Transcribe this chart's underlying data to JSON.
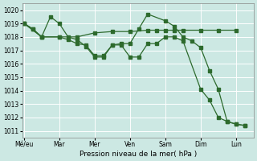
{
  "bg_color": "#cce8e3",
  "grid_color": "#ffffff",
  "line_color": "#2d6a2d",
  "xlabel": "Pression niveau de la mer( hPa )",
  "ylim": [
    1010.5,
    1020.5
  ],
  "yticks": [
    1011,
    1012,
    1013,
    1014,
    1015,
    1016,
    1017,
    1018,
    1019,
    1020
  ],
  "day_labels": [
    "Mé/eu",
    "Mar",
    "Mer",
    "Ven",
    "Sam",
    "Dim",
    "Lun"
  ],
  "day_positions": [
    0,
    2,
    4,
    6,
    8,
    10,
    12
  ],
  "xlim": [
    -0.1,
    13.0
  ],
  "series": [
    {
      "x": [
        0,
        0.5,
        1,
        1.5,
        2,
        2.5,
        3,
        3.5,
        4,
        4.5,
        5,
        5.5,
        6,
        6.5,
        7,
        7.5,
        8,
        8.5,
        9,
        10,
        10.5,
        11,
        11.5,
        12,
        12.5
      ],
      "y": [
        1019.0,
        1018.6,
        1018.0,
        1019.5,
        1019.0,
        1018.0,
        1017.8,
        1017.3,
        1016.5,
        1016.5,
        1017.4,
        1017.4,
        1016.5,
        1016.5,
        1017.5,
        1017.5,
        1018.0,
        1018.0,
        1017.7,
        1014.1,
        1013.3,
        1012.0,
        1011.7,
        1011.5,
        1011.4
      ]
    },
    {
      "x": [
        0,
        1,
        2,
        3,
        4,
        5,
        6,
        7,
        7.5,
        8,
        8.5,
        9,
        10,
        11,
        12
      ],
      "y": [
        1019.0,
        1018.0,
        1018.0,
        1018.0,
        1018.3,
        1018.4,
        1018.4,
        1018.5,
        1018.5,
        1018.5,
        1018.5,
        1018.5,
        1018.5,
        1018.5,
        1018.5
      ]
    },
    {
      "x": [
        0,
        0.5,
        1,
        2,
        2.5,
        3,
        3.5,
        4,
        4.5,
        5,
        5.5,
        6,
        6.5,
        7,
        8,
        8.5,
        9,
        9.5,
        10,
        10.5,
        11,
        11.5,
        12,
        12.5
      ],
      "y": [
        1019.0,
        1018.6,
        1018.0,
        1018.0,
        1017.8,
        1017.5,
        1017.4,
        1016.6,
        1016.6,
        1017.4,
        1017.5,
        1017.5,
        1018.6,
        1019.7,
        1019.2,
        1018.8,
        1018.0,
        1017.7,
        1017.2,
        1015.5,
        1014.1,
        1011.7,
        1011.5,
        1011.4
      ]
    }
  ]
}
